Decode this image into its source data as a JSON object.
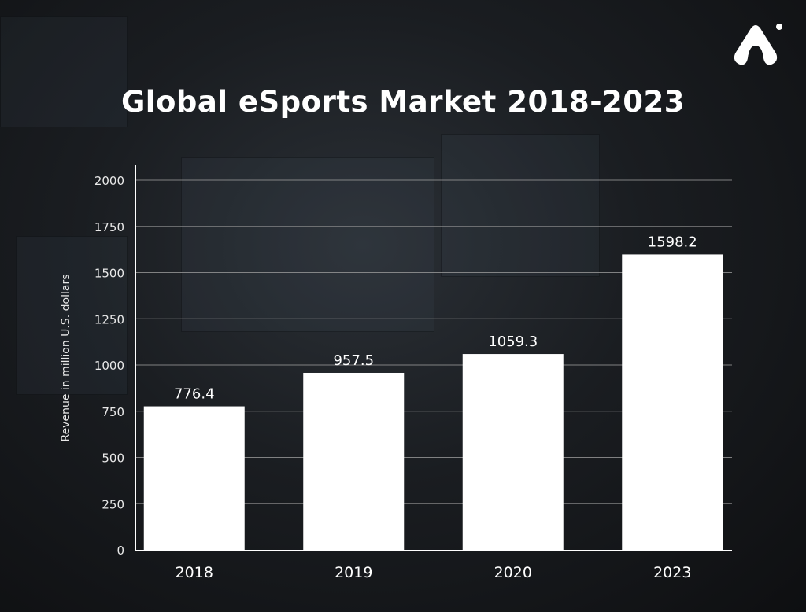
{
  "chart_data": {
    "type": "bar",
    "title": "Global eSports Market 2018-2023",
    "xlabel": "",
    "ylabel": "Revenue in million U.S. dollars",
    "categories": [
      "2018",
      "2019",
      "2020",
      "2023"
    ],
    "values": [
      776.4,
      957.5,
      1059.3,
      1598.2
    ],
    "data_labels": [
      "776.4",
      "957.5",
      "1059.3",
      "1598.2"
    ],
    "ylim": [
      0,
      2000
    ],
    "yticks": [
      0,
      250,
      500,
      750,
      1000,
      1250,
      1500,
      1750,
      2000
    ],
    "grid": true,
    "colors": {
      "bar": "#ffffff",
      "grid": "#9a9a9a",
      "background": "#15171a"
    }
  },
  "logo": {
    "icon": "brand-a-logo-icon"
  }
}
